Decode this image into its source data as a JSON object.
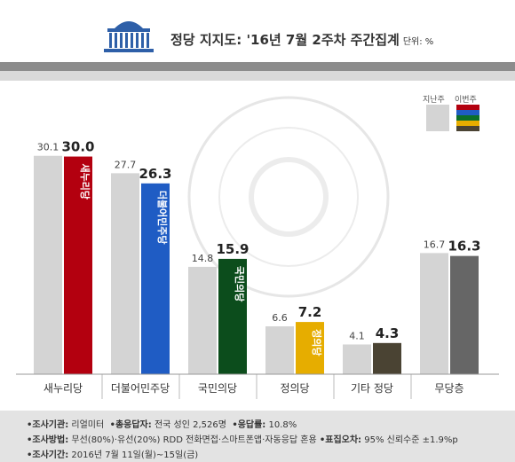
{
  "title": {
    "text": "정당 지지도: '16년 7월 2주차 주간집계",
    "unit": "단위: %"
  },
  "legend": {
    "prev_label": "지난주",
    "curr_label": "이번주"
  },
  "footer": {
    "row1": {
      "k1": "•조사기관:",
      "v1": "리얼미터",
      "k2": "•총응답자:",
      "v2": "전국 성인 2,526명",
      "k3": "•응답률:",
      "v3": "10.8%"
    },
    "row2": {
      "k1": "•조사방법:",
      "v1": "무선(80%)·유선(20%) RDD 전화면접·스마트폰앱·자동응답 혼용",
      "k2": "•표집오차:",
      "v2": "95% 신뢰수준 ±1.9%p"
    },
    "row3": {
      "k1": "•조사기간:",
      "v1": "2016년 7월 11일(월)~15일(금)"
    }
  },
  "chart_data": {
    "type": "bar",
    "categories": [
      "새누리당",
      "더불어민주당",
      "국민의당",
      "정의당",
      "기타 정당",
      "무당층"
    ],
    "series": [
      {
        "name": "지난주",
        "values": [
          30.1,
          27.7,
          14.8,
          6.6,
          4.1,
          16.7
        ],
        "color": "#d4d4d4"
      },
      {
        "name": "이번주",
        "values": [
          30.0,
          26.3,
          15.9,
          7.2,
          4.3,
          16.3
        ],
        "colors": [
          "#b3000f",
          "#1f5cc4",
          "#0c4d1c",
          "#e6ad00",
          "#4a4333",
          "#666666"
        ]
      }
    ],
    "bar_labels": [
      "새누리당",
      "더불어민주당",
      "국민의당",
      "정의당",
      "",
      ""
    ],
    "legend_swatches": [
      "#b3000f",
      "#1f5cc4",
      "#0c6f2a",
      "#e6ad00",
      "#4a4333"
    ],
    "ylim": [
      0,
      33
    ],
    "grid": false
  }
}
